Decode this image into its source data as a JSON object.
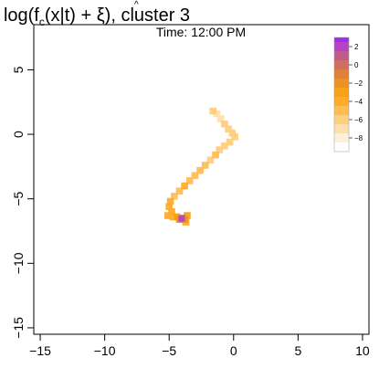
{
  "chart_data": {
    "type": "heatmap",
    "title": "log(f̂c(x|t) + ξ), cluster 3",
    "title_parts": {
      "prefix": "log(",
      "f": "f",
      "hat": "^",
      "sub": "c",
      "args": "(x|t) + ξ), cluster 3"
    },
    "subtitle": "Time:  12:00 PM",
    "xlabel": "",
    "ylabel": "",
    "xlim": [
      -15.5,
      10.5
    ],
    "ylim": [
      -15.5,
      8.5
    ],
    "x_ticks": [
      -15,
      -10,
      -5,
      0,
      5,
      10
    ],
    "x_tick_labels": [
      "−15",
      "−10",
      "−5",
      "0",
      "5",
      "10"
    ],
    "y_ticks": [
      5,
      0,
      -5,
      -10,
      -15
    ],
    "y_tick_labels": [
      "5",
      "0",
      "−5",
      "−10",
      "−15"
    ],
    "grid": false,
    "legend": {
      "placement": "top-right",
      "tick_labels": [
        "2",
        "0",
        "−2",
        "−4",
        "−6",
        "−8"
      ],
      "tick_values": [
        2,
        0,
        -2,
        -4,
        -6,
        -8
      ],
      "range": [
        -9.5,
        3.0
      ],
      "bins": [
        {
          "from": -9.5,
          "to": -8.5,
          "color": "#ffffff"
        },
        {
          "from": -8.5,
          "to": -7.5,
          "color": "#fff1d6"
        },
        {
          "from": -7.5,
          "to": -6.5,
          "color": "#ffe0ad"
        },
        {
          "from": -6.5,
          "to": -5.5,
          "color": "#ffcf80"
        },
        {
          "from": -5.5,
          "to": -4.5,
          "color": "#ffbd54"
        },
        {
          "from": -4.5,
          "to": -3.5,
          "color": "#ffac2a"
        },
        {
          "from": -3.5,
          "to": -2.5,
          "color": "#f7a21a"
        },
        {
          "from": -2.5,
          "to": -1.5,
          "color": "#ee9124"
        },
        {
          "from": -1.5,
          "to": -0.5,
          "color": "#e0803a"
        },
        {
          "from": -0.5,
          "to": 0.5,
          "color": "#d06e62"
        },
        {
          "from": 0.5,
          "to": 1.5,
          "color": "#c25a8a"
        },
        {
          "from": 1.5,
          "to": 2.5,
          "color": "#b444c4"
        },
        {
          "from": 2.5,
          "to": 3.0,
          "color": "#a02cf0"
        }
      ]
    },
    "density_cells": [
      {
        "x": -1.6,
        "y": 1.8,
        "v": -6.5
      },
      {
        "x": -1.3,
        "y": 1.6,
        "v": -6.8
      },
      {
        "x": -1.0,
        "y": 1.2,
        "v": -6.8
      },
      {
        "x": -0.7,
        "y": 0.8,
        "v": -6.4
      },
      {
        "x": -0.4,
        "y": 0.4,
        "v": -6.2
      },
      {
        "x": -0.1,
        "y": 0.1,
        "v": -6.0
      },
      {
        "x": 0.1,
        "y": -0.2,
        "v": -6.5
      },
      {
        "x": -0.3,
        "y": -0.6,
        "v": -6.2
      },
      {
        "x": -0.7,
        "y": -0.9,
        "v": -5.8
      },
      {
        "x": -1.1,
        "y": -1.2,
        "v": -5.6
      },
      {
        "x": -1.4,
        "y": -1.6,
        "v": -5.0
      },
      {
        "x": -1.8,
        "y": -2.0,
        "v": -5.6
      },
      {
        "x": -2.2,
        "y": -2.4,
        "v": -5.2
      },
      {
        "x": -2.6,
        "y": -2.8,
        "v": -5.4
      },
      {
        "x": -3.0,
        "y": -3.2,
        "v": -4.8
      },
      {
        "x": -3.4,
        "y": -3.6,
        "v": -5.2
      },
      {
        "x": -3.8,
        "y": -4.0,
        "v": -4.4
      },
      {
        "x": -4.2,
        "y": -4.4,
        "v": -5.0
      },
      {
        "x": -4.6,
        "y": -4.8,
        "v": -4.6
      },
      {
        "x": -4.9,
        "y": -5.2,
        "v": -4.2
      },
      {
        "x": -5.0,
        "y": -5.6,
        "v": -4.5
      },
      {
        "x": -4.8,
        "y": -6.0,
        "v": -4.0
      },
      {
        "x": -5.1,
        "y": -6.3,
        "v": -4.3
      },
      {
        "x": -4.7,
        "y": -6.4,
        "v": -3.6
      },
      {
        "x": -4.4,
        "y": -6.4,
        "v": -3.0
      },
      {
        "x": -4.2,
        "y": -6.6,
        "v": -2.5
      },
      {
        "x": -4.0,
        "y": -6.5,
        "v": -0.5
      },
      {
        "x": -3.8,
        "y": -6.6,
        "v": -1.8
      },
      {
        "x": -4.05,
        "y": -6.55,
        "v": 2.2
      },
      {
        "x": -3.6,
        "y": -6.3,
        "v": -3.2
      },
      {
        "x": -3.7,
        "y": -6.8,
        "v": -3.6
      }
    ]
  }
}
